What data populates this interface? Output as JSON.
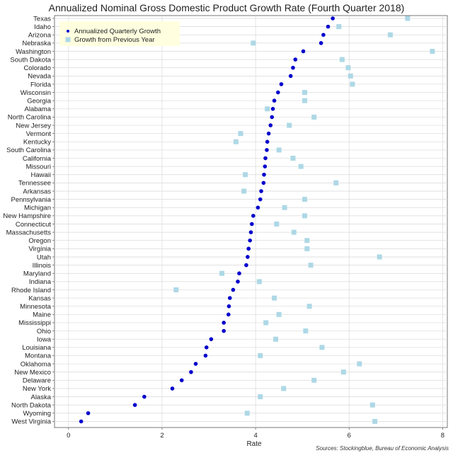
{
  "chart_data": {
    "type": "scatter",
    "title": "Annualized Nominal Gross Domestic Product Growth Rate (Fourth Quarter 2018)",
    "xlabel": "Rate",
    "ylabel": "",
    "xlim": [
      -0.3,
      8.1
    ],
    "x_ticks": [
      0,
      2,
      4,
      6,
      8
    ],
    "grid": true,
    "legend_position": "top-left",
    "source": "Sources: Stockingblue, Bureau of Economic Analysis",
    "categories": [
      "Texas",
      "Idaho",
      "Arizona",
      "Nebraska",
      "Washington",
      "South Dakota",
      "Colorado",
      "Nevada",
      "Florida",
      "Wisconsin",
      "Georgia",
      "Alabama",
      "North Carolina",
      "New Jersey",
      "Vermont",
      "Kentucky",
      "South Carolina",
      "California",
      "Missouri",
      "Hawaii",
      "Tennessee",
      "Arkansas",
      "Pennsylvania",
      "Michigan",
      "New Hampshire",
      "Connecticut",
      "Massachusetts",
      "Oregon",
      "Virginia",
      "Utah",
      "Illinois",
      "Maryland",
      "Indiana",
      "Rhode Island",
      "Kansas",
      "Minnesota",
      "Maine",
      "Mississippi",
      "Ohio",
      "Iowa",
      "Louisiana",
      "Montana",
      "Oklahoma",
      "New Mexico",
      "Delaware",
      "New York",
      "Alaska",
      "North Dakota",
      "Wyoming",
      "West Virginia"
    ],
    "series": [
      {
        "name": "Annualized Quarterly Growth",
        "color": "#0000cc",
        "marker": "circle",
        "values": [
          5.65,
          5.55,
          5.45,
          5.4,
          5.02,
          4.85,
          4.8,
          4.75,
          4.55,
          4.48,
          4.4,
          4.37,
          4.35,
          4.32,
          4.28,
          4.25,
          4.24,
          4.21,
          4.2,
          4.18,
          4.17,
          4.12,
          4.1,
          4.05,
          3.95,
          3.92,
          3.9,
          3.88,
          3.85,
          3.83,
          3.8,
          3.65,
          3.62,
          3.52,
          3.45,
          3.43,
          3.42,
          3.32,
          3.32,
          3.05,
          2.95,
          2.93,
          2.72,
          2.62,
          2.42,
          2.22,
          1.62,
          1.42,
          0.42,
          0.27
        ]
      },
      {
        "name": "Growth from Previous Year",
        "color": "#add8e6",
        "marker": "square",
        "values": [
          7.25,
          5.78,
          6.88,
          3.95,
          7.78,
          5.85,
          5.98,
          6.03,
          6.07,
          5.05,
          5.05,
          4.25,
          5.25,
          4.72,
          3.68,
          3.58,
          4.5,
          4.8,
          4.97,
          3.78,
          5.72,
          3.75,
          5.05,
          4.62,
          5.05,
          4.45,
          4.82,
          5.1,
          5.1,
          6.65,
          5.18,
          3.28,
          4.08,
          2.3,
          4.4,
          5.15,
          4.5,
          4.22,
          5.07,
          4.43,
          5.42,
          4.1,
          6.22,
          5.88,
          5.25,
          4.6,
          4.1,
          6.5,
          3.82,
          6.55
        ]
      }
    ]
  }
}
